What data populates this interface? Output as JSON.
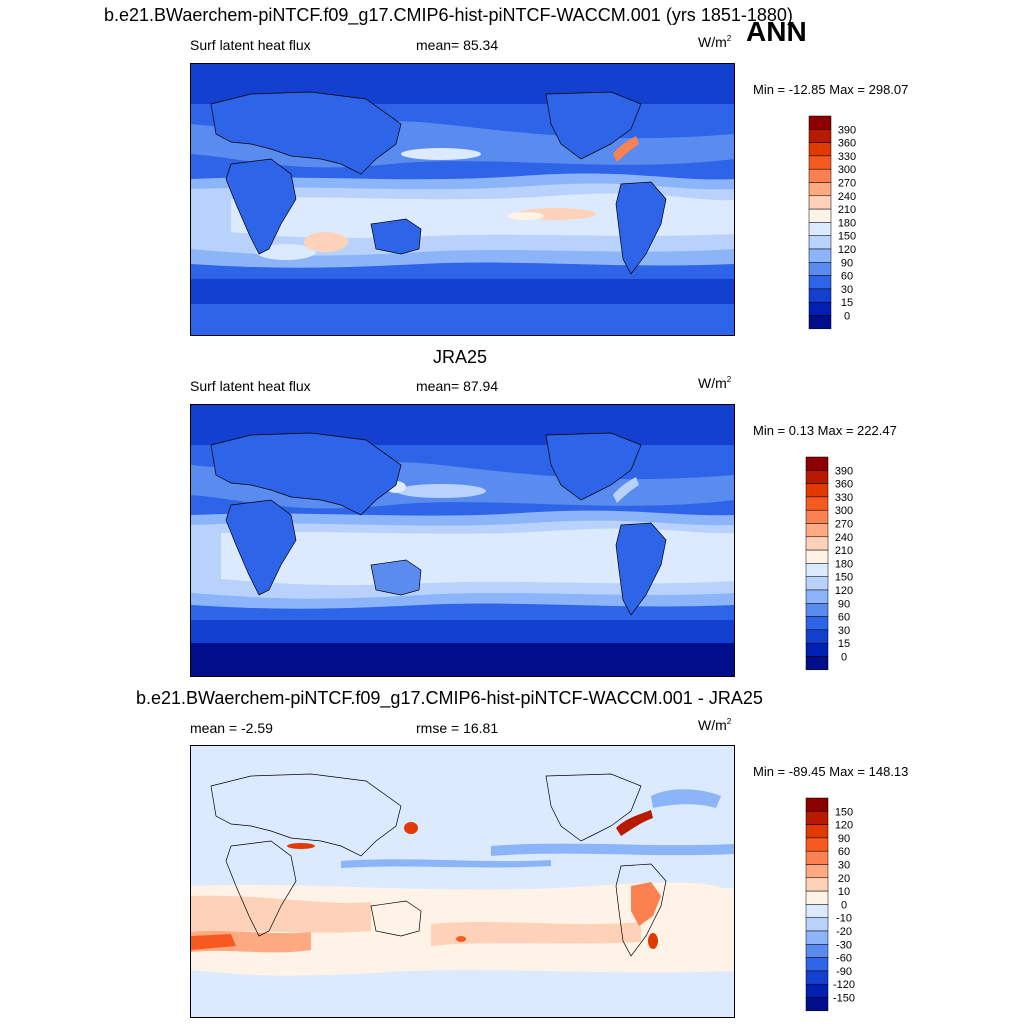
{
  "header": {
    "main_title": "b.e21.BWaerchem-piNTCF.f09_g17.CMIP6-hist-piNTCF-WACCM.001 (yrs 1851-1880)",
    "season": "ANN"
  },
  "panels": [
    {
      "id": "model",
      "left_label": "Surf latent heat flux",
      "center_label": "mean=  85.34",
      "unit_base": "W/m",
      "unit_sup": "2",
      "minmax": "Min = -12.85 Max = 298.07",
      "colorbar": {
        "labels": [
          "390",
          "360",
          "330",
          "300",
          "270",
          "240",
          "210",
          "180",
          "150",
          "120",
          "90",
          "60",
          "30",
          "15",
          "0"
        ],
        "colors": [
          "#8c0000",
          "#b81a00",
          "#e03a00",
          "#f75a1e",
          "#fb8250",
          "#fdaa82",
          "#fdd2b8",
          "#fff2e6",
          "#dceaff",
          "#b8d2fc",
          "#8cb4f8",
          "#5a8cf0",
          "#2e64e8",
          "#1440d0",
          "#0020b4",
          "#000e8c"
        ]
      }
    },
    {
      "id": "obs",
      "title": "JRA25",
      "left_label": "Surf latent heat flux",
      "center_label": "mean=  87.94",
      "unit_base": "W/m",
      "unit_sup": "2",
      "minmax": "Min =   0.13 Max = 222.47",
      "colorbar": {
        "labels": [
          "390",
          "360",
          "330",
          "300",
          "270",
          "240",
          "210",
          "180",
          "150",
          "120",
          "90",
          "60",
          "30",
          "15",
          "0"
        ],
        "colors": [
          "#8c0000",
          "#b81a00",
          "#e03a00",
          "#f75a1e",
          "#fb8250",
          "#fdaa82",
          "#fdd2b8",
          "#fff2e6",
          "#dceaff",
          "#b8d2fc",
          "#8cb4f8",
          "#5a8cf0",
          "#2e64e8",
          "#1440d0",
          "#0020b4",
          "#000e8c"
        ]
      }
    },
    {
      "id": "diff",
      "title": "b.e21.BWaerchem-piNTCF.f09_g17.CMIP6-hist-piNTCF-WACCM.001 - JRA25",
      "left_label": "mean =  -2.59",
      "center_label": "rmse =  16.81",
      "unit_base": "W/m",
      "unit_sup": "2",
      "minmax": "Min = -89.45 Max = 148.13",
      "colorbar": {
        "labels": [
          "150",
          "120",
          "90",
          "60",
          "30",
          "20",
          "10",
          "0",
          "-10",
          "-20",
          "-30",
          "-60",
          "-90",
          "-120",
          "-150"
        ],
        "colors": [
          "#8c0000",
          "#b81a00",
          "#e03a00",
          "#f75a1e",
          "#fb8250",
          "#fdaa82",
          "#fdd2b8",
          "#fff2e6",
          "#dceaff",
          "#b8d2fc",
          "#8cb4f8",
          "#5a8cf0",
          "#2e64e8",
          "#1440d0",
          "#0020b4",
          "#000e8c"
        ]
      }
    }
  ]
}
